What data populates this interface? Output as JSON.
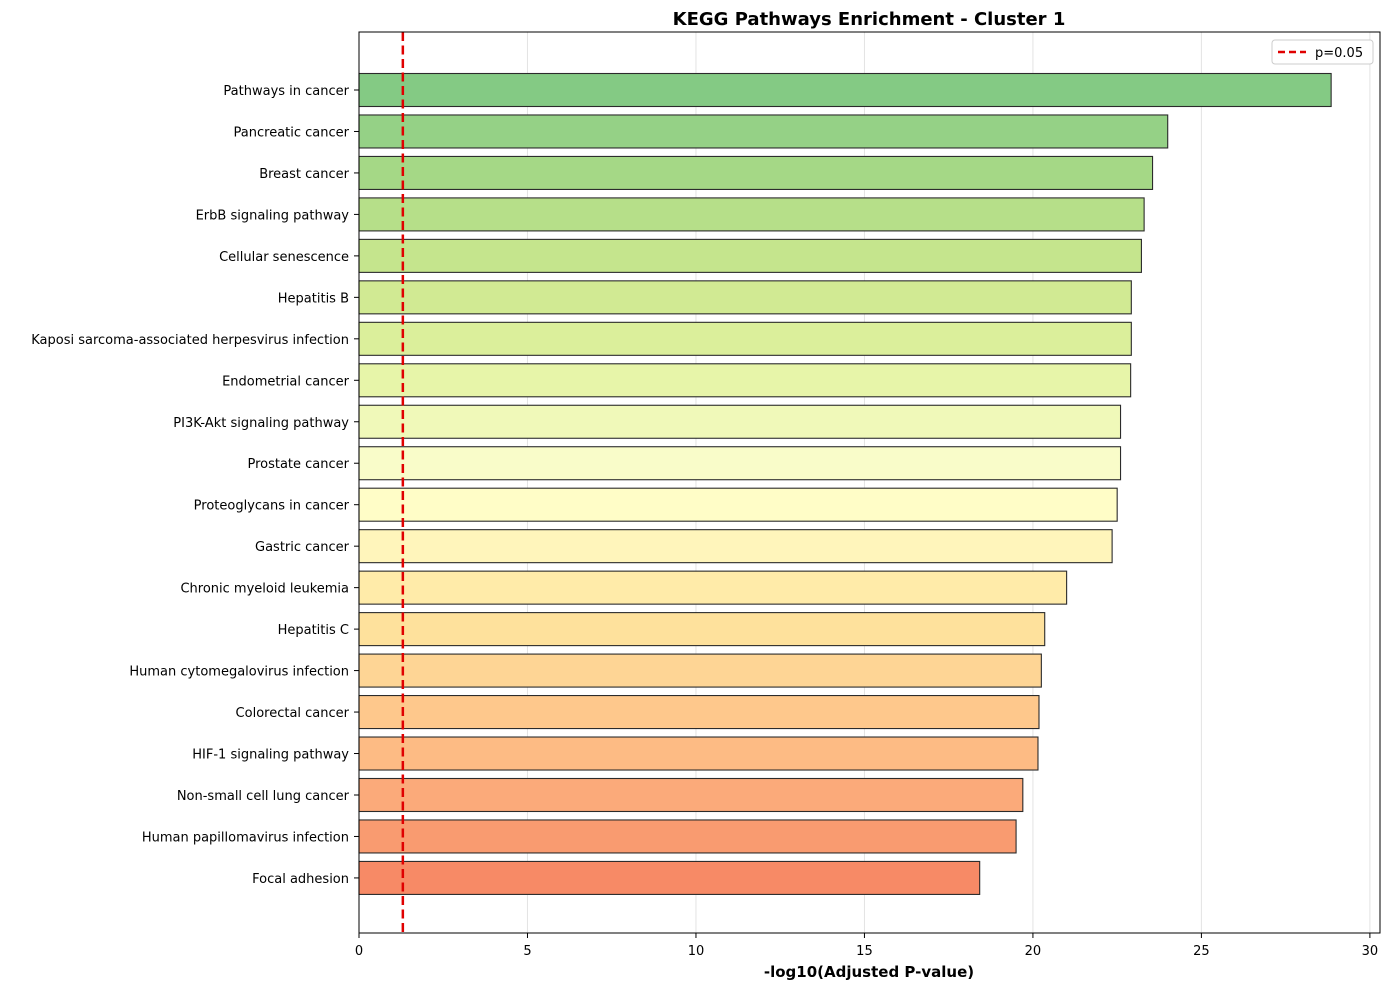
{
  "chart_data": {
    "type": "bar",
    "orientation": "horizontal",
    "title": "KEGG Pathways Enrichment - Cluster 1",
    "xlabel": "-log10(Adjusted P-value)",
    "ylabel": "",
    "xlim": [
      0,
      30.3
    ],
    "xticks": [
      0,
      5,
      10,
      15,
      20,
      25,
      30
    ],
    "grid": "x",
    "legend_placement": "top-right",
    "categories": [
      "Pathways in cancer",
      "Pancreatic cancer",
      "Breast cancer",
      "ErbB signaling pathway",
      "Cellular senescence",
      "Hepatitis B",
      "Kaposi sarcoma-associated herpesvirus infection",
      "Endometrial cancer",
      "PI3K-Akt signaling pathway",
      "Prostate cancer",
      "Proteoglycans in cancer",
      "Gastric cancer",
      "Chronic myeloid leukemia",
      "Hepatitis C",
      "Human cytomegalovirus infection",
      "Colorectal cancer",
      "HIF-1 signaling pathway",
      "Non-small cell lung cancer",
      "Human papillomavirus infection",
      "Focal adhesion"
    ],
    "values": [
      28.85,
      24.0,
      23.55,
      23.3,
      23.22,
      22.92,
      22.92,
      22.9,
      22.6,
      22.6,
      22.5,
      22.35,
      21.0,
      20.35,
      20.25,
      20.18,
      20.15,
      19.7,
      19.5,
      18.42
    ],
    "colors": [
      "#84ca84",
      "#95d186",
      "#a5d886",
      "#b6df89",
      "#c5e58d",
      "#d1ea93",
      "#dbef9b",
      "#e7f5a9",
      "#f0f9b9",
      "#f9fcc9",
      "#fffdc7",
      "#fff5bb",
      "#ffeba9",
      "#fee19c",
      "#fed595",
      "#fec88c",
      "#fdbb84",
      "#fbaa7a",
      "#f99b70",
      "#f78a66"
    ],
    "reference_line": {
      "label": "p=0.05",
      "value": 1.30103,
      "color": "#e00000",
      "style": "dashed"
    }
  }
}
